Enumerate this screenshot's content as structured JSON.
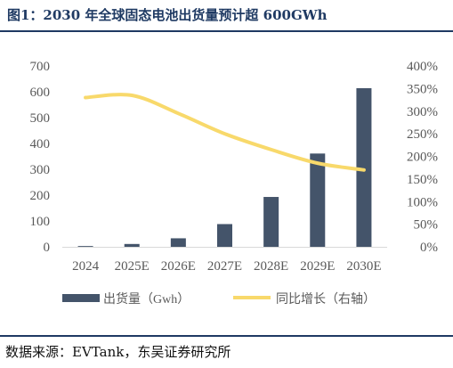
{
  "title": "图1：2030 年全球固态电池出货量预计超 600GWh",
  "source": "数据来源：EVTank，东吴证券研究所",
  "colors": {
    "bar": "#44546a",
    "line": "#f8d96b",
    "title": "#1f3a63"
  },
  "chart_data": {
    "type": "bar",
    "categories": [
      "2024",
      "2025E",
      "2026E",
      "2027E",
      "2028E",
      "2029E",
      "2030E"
    ],
    "series": [
      {
        "name": "出货量（Gwh）",
        "type": "bar",
        "axis": "left",
        "values": [
          3,
          11,
          33,
          88,
          193,
          361,
          614
        ]
      },
      {
        "name": "同比增长（右轴）",
        "type": "line",
        "axis": "right",
        "smooth": true,
        "values": [
          330,
          335,
          295,
          250,
          215,
          185,
          170
        ]
      }
    ],
    "y_left": {
      "min": 0,
      "max": 700,
      "ticks": [
        "0",
        "100",
        "200",
        "300",
        "400",
        "500",
        "600",
        "700"
      ]
    },
    "y_right": {
      "min": 0,
      "max": 400,
      "ticks": [
        "0%",
        "50%",
        "100%",
        "150%",
        "200%",
        "250%",
        "300%",
        "350%",
        "400%"
      ]
    },
    "grid": false,
    "legend": "bottom"
  }
}
